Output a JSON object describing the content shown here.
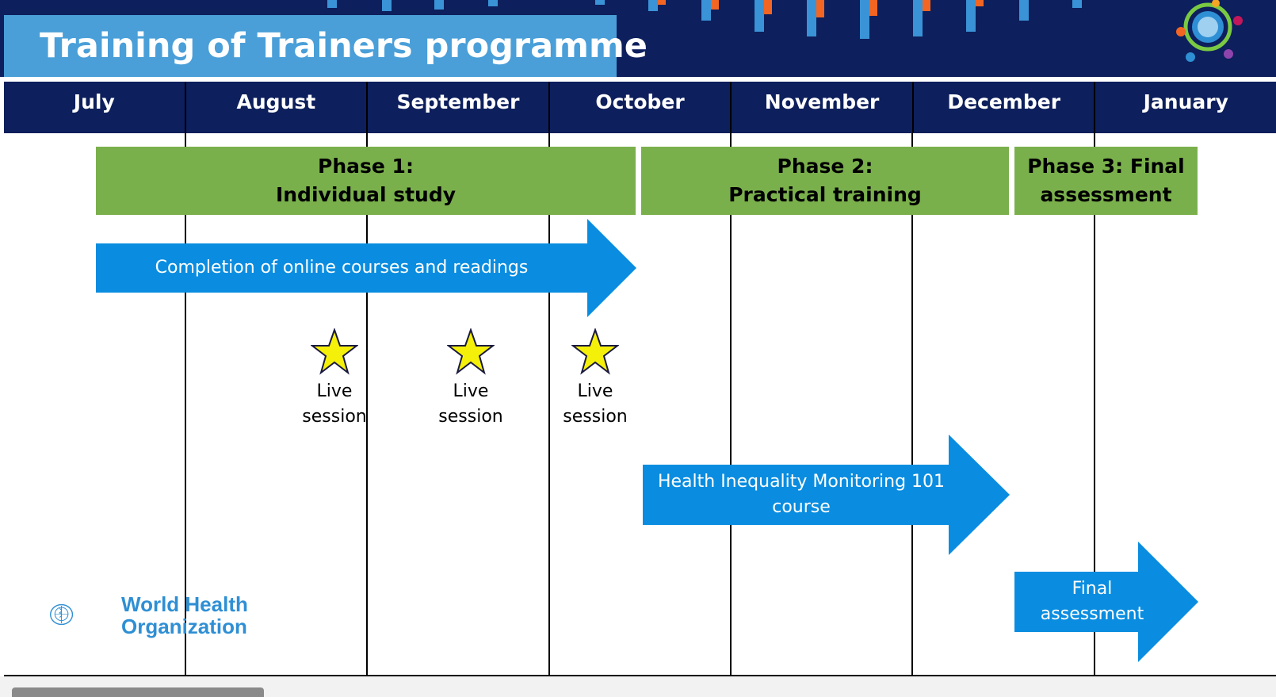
{
  "slide": {
    "title": "Training of Trainers programme",
    "months": [
      "July",
      "August",
      "September",
      "October",
      "November",
      "December",
      "January"
    ],
    "phases": [
      {
        "line1": "Phase 1:",
        "line2": "Individual study"
      },
      {
        "line1": "Phase 2:",
        "line2": "Practical training"
      },
      {
        "line1": "Phase 3: Final",
        "line2": "assessment"
      }
    ],
    "arrows": {
      "online_courses": "Completion of online courses and readings",
      "him101_line1": "Health Inequality Monitoring 101",
      "him101_line2": "course",
      "final_line1": "Final",
      "final_line2": "assessment"
    },
    "live_sessions": [
      {
        "line1": "Live",
        "line2": "session"
      },
      {
        "line1": "Live",
        "line2": "session"
      },
      {
        "line1": "Live",
        "line2": "session"
      }
    ],
    "logo": {
      "line1": "World Health",
      "line2": "Organization"
    }
  },
  "colors": {
    "navy": "#0d1f5c",
    "title_blue": "#4a9fd8",
    "phase_green": "#7ab04c",
    "arrow_blue": "#0a8de0",
    "star_yellow": "#f5f00a",
    "who_blue": "#2f8fd4",
    "accent_orange": "#f26522"
  }
}
